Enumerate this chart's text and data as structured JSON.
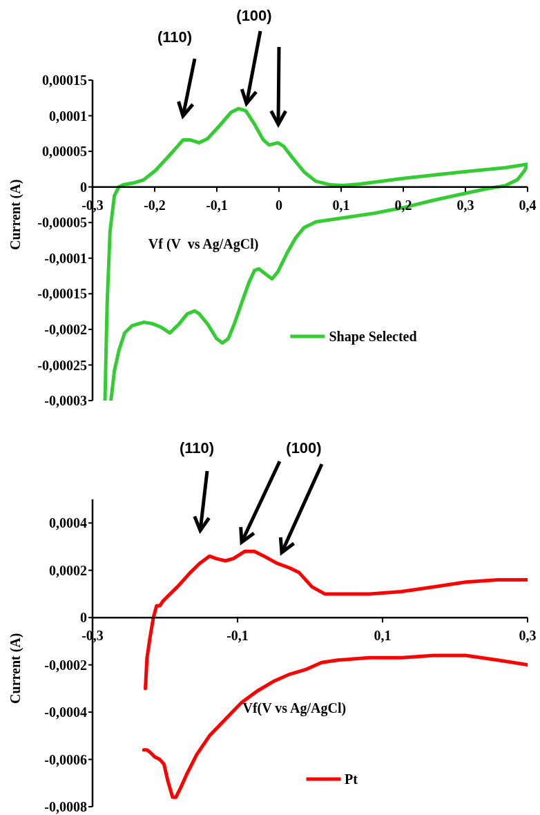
{
  "chart_data": [
    {
      "type": "line",
      "xlabel": "Vf (V  vs Ag/AgCl)",
      "ylabel": "Current (A)",
      "legend": "bottom",
      "xlim": [
        -0.3,
        0.4
      ],
      "xticks": [
        {
          "value": -0.3,
          "label": "-0,3"
        },
        {
          "value": -0.2,
          "label": "-0,2"
        },
        {
          "value": -0.1,
          "label": "-0,1"
        },
        0,
        {
          "value": 0.1,
          "label": "0,1"
        },
        {
          "value": 0.2,
          "label": "0,2"
        },
        {
          "value": 0.3,
          "label": "0,3"
        },
        {
          "value": 0.4,
          "label": "0,4"
        }
      ],
      "ylim": [
        -0.0003,
        0.00015
      ],
      "yticks": [
        {
          "value": -0.0003,
          "label": "-0,0003"
        },
        {
          "value": -0.00025,
          "label": "-0,00025"
        },
        {
          "value": -0.0002,
          "label": "-0,0002"
        },
        {
          "value": -0.00015,
          "label": "-0,00015"
        },
        {
          "value": -0.0001,
          "label": "-0,0001"
        },
        {
          "value": -5e-05,
          "label": "-0,00005"
        },
        0,
        {
          "value": 5e-05,
          "label": "0,00005"
        },
        {
          "value": 0.0001,
          "label": "0,0001"
        },
        {
          "value": 0.00015,
          "label": "0,00015"
        }
      ],
      "annotations": [
        "(110)",
        "(100)"
      ],
      "series": [
        {
          "name": "Shape Selected",
          "color": "#33cc33",
          "x": [
            -0.28,
            -0.2765,
            -0.2718,
            -0.2648,
            -0.2577,
            -0.2507,
            -0.2319,
            -0.2178,
            -0.199,
            -0.1755,
            -0.1544,
            -0.1427,
            -0.1286,
            -0.1145,
            -0.0957,
            -0.0769,
            -0.0652,
            -0.0534,
            -0.0393,
            -0.0252,
            -0.0158,
            -0.0017,
            0.0077,
            0.0217,
            0.0405,
            0.0593,
            0.0828,
            0.1016,
            0.1298,
            0.2002,
            0.2942,
            0.3646,
            0.4,
            0.3952,
            0.3835,
            0.3646,
            0.3317,
            0.2942,
            0.2472,
            0.2002,
            0.1533,
            0.1063,
            0.0593,
            0.0405,
            0.0264,
            0.0123,
            -0.0017,
            -0.0111,
            -0.0205,
            -0.0323,
            -0.0393,
            -0.0487,
            -0.0605,
            -0.0722,
            -0.0816,
            -0.091,
            -0.1004,
            -0.1145,
            -0.1286,
            -0.1356,
            -0.1473,
            -0.1614,
            -0.1755,
            -0.1896,
            -0.2037,
            -0.2178,
            -0.2366,
            -0.2483,
            -0.2577,
            -0.2648,
            -0.2704
          ],
          "values": [
            -0.0003,
            -0.000164,
            -6.2e-05,
            -1.2e-05,
            0,
            3e-06,
            6e-06,
            1e-05,
            2.3e-05,
            4.5e-05,
            6.6e-05,
            6.6e-05,
            6.2e-05,
            6.8e-05,
            8.6e-05,
            0.000105,
            0.00011,
            0.000107,
            8.8e-05,
            6.6e-05,
            5.9e-05,
            6.2e-05,
            5.7e-05,
            4.1e-05,
            2.1e-05,
            8e-06,
            3e-06,
            2e-06,
            4e-06,
            1.2e-05,
            2.1e-05,
            2.7e-05,
            3.2e-05,
            2.3e-05,
            1e-05,
            2e-06,
            -3e-06,
            -1e-05,
            -1.9e-05,
            -2.9e-05,
            -3.7e-05,
            -4.3e-05,
            -4.9e-05,
            -5.7e-05,
            -7.2e-05,
            -9.4e-05,
            -0.000119,
            -0.000129,
            -0.000123,
            -0.000115,
            -0.000117,
            -0.000135,
            -0.000164,
            -0.000193,
            -0.000213,
            -0.000219,
            -0.000213,
            -0.000193,
            -0.000178,
            -0.000174,
            -0.000178,
            -0.000193,
            -0.000205,
            -0.000197,
            -0.000192,
            -0.00019,
            -0.000195,
            -0.000205,
            -0.00023,
            -0.000258,
            -0.0003
          ]
        }
      ]
    },
    {
      "type": "line",
      "xlabel": "Vf(V vs Ag/AgCl)",
      "ylabel": "Current (A)",
      "legend": "bottom",
      "xlim": [
        -0.3,
        0.3
      ],
      "xticks": [
        {
          "value": -0.3,
          "label": "-0,3"
        },
        {
          "value": -0.1,
          "label": "-0,1"
        },
        {
          "value": 0.1,
          "label": "0,1"
        },
        {
          "value": 0.3,
          "label": "0,3"
        }
      ],
      "ylim": [
        -0.0008,
        0.0005
      ],
      "yticks": [
        {
          "value": -0.0008,
          "label": "-0,0008"
        },
        {
          "value": -0.0006,
          "label": "-0,0006"
        },
        {
          "value": -0.0004,
          "label": "-0,0004"
        },
        {
          "value": -0.0002,
          "label": "-0,0002"
        },
        0,
        {
          "value": 0.0002,
          "label": "0,0002"
        },
        {
          "value": 0.0004,
          "label": "0,0004"
        }
      ],
      "annotations": [
        "(110)",
        "(100)"
      ],
      "series": [
        {
          "name": "Pt",
          "color": "#ff0000",
          "x": [
            -0.2271,
            -0.2249,
            -0.2205,
            -0.2161,
            -0.2116,
            -0.2072,
            -0.2028,
            -0.1962,
            -0.1829,
            -0.1653,
            -0.152,
            -0.1387,
            -0.1299,
            -0.1167,
            -0.1056,
            -0.0901,
            -0.0769,
            -0.0636,
            -0.046,
            -0.0283,
            -0.015,
            0.0026,
            0.0203,
            0.0468,
            0.0822,
            0.1263,
            0.1705,
            0.2147,
            0.2589,
            0.3
          ],
          "values": [
            -0.0003,
            -0.00017,
            -8e-05,
            0,
            5e-05,
            5e-05,
            7e-05,
            9e-05,
            0.00013,
            0.00019,
            0.00023,
            0.00026,
            0.00025,
            0.00024,
            0.00025,
            0.00028,
            0.00028,
            0.00026,
            0.00023,
            0.00021,
            0.00019,
            0.00013,
            0.0001,
            0.0001,
            0.0001,
            0.00011,
            0.00013,
            0.00015,
            0.00016,
            0.00016
          ]
        },
        {
          "color": "#ff0000",
          "x": [
            0.3,
            0.2589,
            0.2147,
            0.1705,
            0.1263,
            0.0822,
            0.038,
            0.0159,
            -0.0062,
            -0.0283,
            -0.0504,
            -0.0725,
            -0.0946,
            -0.1167,
            -0.1387,
            -0.1564,
            -0.1697,
            -0.1785,
            -0.1851,
            -0.1896,
            -0.1962,
            -0.2015,
            -0.2072,
            -0.2139,
            -0.2205,
            -0.2249,
            -0.2293
          ],
          "values": [
            -0.0002,
            -0.00018,
            -0.00016,
            -0.00016,
            -0.00017,
            -0.00017,
            -0.00018,
            -0.00019,
            -0.00022,
            -0.00024,
            -0.00027,
            -0.00031,
            -0.00036,
            -0.00043,
            -0.0005,
            -0.00058,
            -0.00066,
            -0.00072,
            -0.00076,
            -0.00076,
            -0.00069,
            -0.00062,
            -0.0006,
            -0.00059,
            -0.00057,
            -0.00056,
            -0.00056
          ]
        }
      ]
    }
  ]
}
